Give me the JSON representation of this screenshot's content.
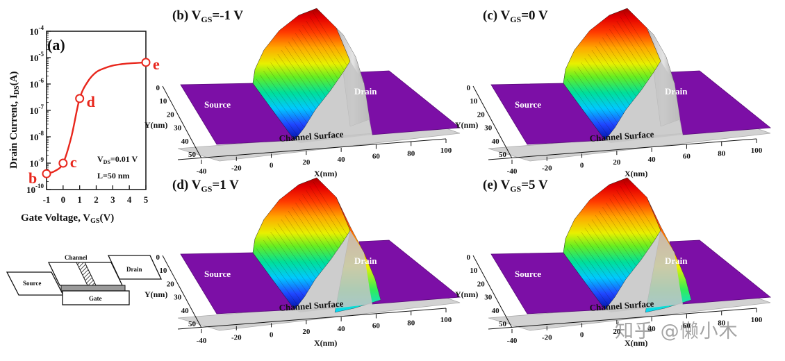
{
  "chart_data": [
    {
      "type": "line",
      "panel": "(a)",
      "xlabel_main": "Gate Voltage, V",
      "xlabel_sub": "GS",
      "xlabel_end": "(V)",
      "ylabel_main": "Drain Current, I",
      "ylabel_sub": "DS",
      "ylabel_end": "(A)",
      "xlim": [
        -1,
        5
      ],
      "ylim_log10": [
        -10,
        -4
      ],
      "xticks": [
        "-1",
        "0",
        "1",
        "2",
        "3",
        "4",
        "5"
      ],
      "yticks_exp": [
        "-10",
        "-9",
        "-8",
        "-7",
        "-6",
        "-5",
        "-4"
      ],
      "log_scale_y": true,
      "series_color": "#e8261c",
      "x": [
        -1,
        -0.5,
        0,
        0.5,
        1,
        1.5,
        2,
        2.5,
        3,
        3.5,
        4,
        4.5,
        5
      ],
      "y_log10": [
        -9.4,
        -9.3,
        -9.0,
        -8.0,
        -6.55,
        -5.9,
        -5.55,
        -5.4,
        -5.3,
        -5.25,
        -5.22,
        -5.2,
        -5.18
      ],
      "markers": [
        {
          "label": "b",
          "x": -1,
          "y_log10": -9.4
        },
        {
          "label": "c",
          "x": 0,
          "y_log10": -9.0
        },
        {
          "label": "d",
          "x": 1,
          "y_log10": -6.55
        },
        {
          "label": "e",
          "x": 5,
          "y_log10": -5.18
        }
      ],
      "annotation_1_main": "V",
      "annotation_1_sub": "DS",
      "annotation_1_end": "=0.01 V",
      "annotation_2": "L=50 nm"
    },
    {
      "type": "surface",
      "panel": "(b)",
      "title_main": "V",
      "title_sub": "GS",
      "title_end": "=-1 V",
      "xlabel": "X(nm)",
      "ylabel": "Y(nm)",
      "xticks": [
        "-40",
        "-20",
        "0",
        "20",
        "40",
        "60",
        "80",
        "100"
      ],
      "yticks": [
        "0",
        "10",
        "20",
        "30",
        "40",
        "50"
      ],
      "regions": [
        "Source",
        "Drain",
        "Channel Surface"
      ],
      "drain_side_colored": false
    },
    {
      "type": "surface",
      "panel": "(c)",
      "title_main": "V",
      "title_sub": "GS",
      "title_end": "=0 V",
      "xlabel": "X(nm)",
      "ylabel": "Y(nm)",
      "xticks": [
        "-40",
        "-20",
        "0",
        "20",
        "40",
        "60",
        "80",
        "100"
      ],
      "yticks": [
        "0",
        "10",
        "20",
        "30",
        "40",
        "50"
      ],
      "regions": [
        "Source",
        "Drain",
        "Channel Surface"
      ],
      "drain_side_colored": false
    },
    {
      "type": "surface",
      "panel": "(d)",
      "title_main": "V",
      "title_sub": "GS",
      "title_end": "=1 V",
      "xlabel": "X(nm)",
      "ylabel": "Y(nm)",
      "xticks": [
        "-40",
        "-20",
        "0",
        "20",
        "40",
        "60",
        "80",
        "100"
      ],
      "yticks": [
        "0",
        "10",
        "20",
        "30",
        "40",
        "50"
      ],
      "regions": [
        "Source",
        "Drain",
        "Channel Surface"
      ],
      "drain_side_colored": true
    },
    {
      "type": "surface",
      "panel": "(e)",
      "title_main": "V",
      "title_sub": "GS",
      "title_end": "=5 V",
      "xlabel": "X(nm)",
      "ylabel": "Y(nm)",
      "xticks": [
        "-40",
        "-20",
        "0",
        "20",
        "40",
        "60",
        "80",
        "100"
      ],
      "yticks": [
        "0",
        "10",
        "20",
        "30",
        "40",
        "50"
      ],
      "regions": [
        "Source",
        "Drain",
        "Channel Surface"
      ],
      "drain_side_colored": true
    }
  ],
  "device_diagram": {
    "channel_label": "Channel",
    "source_label": "Source",
    "drain_label": "Drain",
    "gate_label": "Gate"
  },
  "watermark": "知乎 @懒小木"
}
